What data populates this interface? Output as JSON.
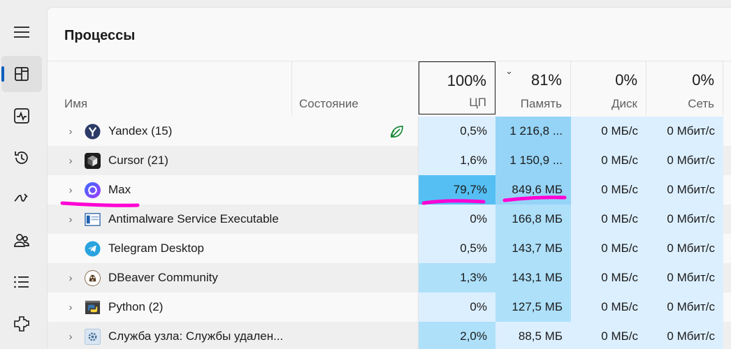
{
  "page_title": "Процессы",
  "columns": {
    "name": "Имя",
    "state": "Состояние",
    "cpu": {
      "label": "ЦП",
      "total": "100%"
    },
    "memory": {
      "label": "Память",
      "total": "81%"
    },
    "disk": {
      "label": "Диск",
      "total": "0%"
    },
    "network": {
      "label": "Сеть",
      "total": "0%"
    }
  },
  "processes": [
    {
      "name": "Yandex (15)",
      "icon": "yandex-browser-icon",
      "expandable": true,
      "efficiency_mode": true,
      "cpu": "0,5%",
      "memory": "1 216,8 ...",
      "disk": "0 МБ/с",
      "network": "0 Мбит/с"
    },
    {
      "name": "Cursor (21)",
      "icon": "cursor-app-icon",
      "expandable": true,
      "efficiency_mode": false,
      "cpu": "1,6%",
      "memory": "1 150,9 ...",
      "disk": "0 МБ/с",
      "network": "0 Мбит/с"
    },
    {
      "name": "Max",
      "icon": "max-messenger-icon",
      "expandable": true,
      "efficiency_mode": false,
      "cpu": "79,7%",
      "memory": "849,6 МБ",
      "disk": "0 МБ/с",
      "network": "0 Мбит/с"
    },
    {
      "name": "Antimalware Service Executable",
      "icon": "antimalware-service-icon",
      "expandable": true,
      "efficiency_mode": false,
      "cpu": "0%",
      "memory": "166,8 МБ",
      "disk": "0 МБ/с",
      "network": "0 Мбит/с"
    },
    {
      "name": "Telegram Desktop",
      "icon": "telegram-icon",
      "expandable": false,
      "efficiency_mode": false,
      "cpu": "0,5%",
      "memory": "143,7 МБ",
      "disk": "0 МБ/с",
      "network": "0 Мбит/с"
    },
    {
      "name": "DBeaver Community",
      "icon": "dbeaver-icon",
      "expandable": true,
      "efficiency_mode": false,
      "cpu": "1,3%",
      "memory": "143,1 МБ",
      "disk": "0 МБ/с",
      "network": "0 Мбит/с"
    },
    {
      "name": "Python (2)",
      "icon": "python-icon",
      "expandable": true,
      "efficiency_mode": false,
      "cpu": "0%",
      "memory": "127,5 МБ",
      "disk": "0 МБ/с",
      "network": "0 Мбит/с"
    },
    {
      "name": "Служба узла: Службы удален...",
      "icon": "service-host-icon",
      "expandable": true,
      "efficiency_mode": false,
      "cpu": "2,0%",
      "memory": "88,5 МБ",
      "disk": "0 МБ/с",
      "network": "0 Мбит/с"
    }
  ],
  "sidebar": [
    "hamburger-menu-icon",
    "processes-icon",
    "performance-icon",
    "app-history-icon",
    "startup-apps-icon",
    "users-icon",
    "details-icon",
    "services-icon"
  ],
  "colors": {
    "accent": "#0a5ebd",
    "heat_low": "#dcefff",
    "heat_mid": "#aee0fa",
    "heat_high": "#55bff4",
    "highlight_marker": "#ff00d4"
  }
}
